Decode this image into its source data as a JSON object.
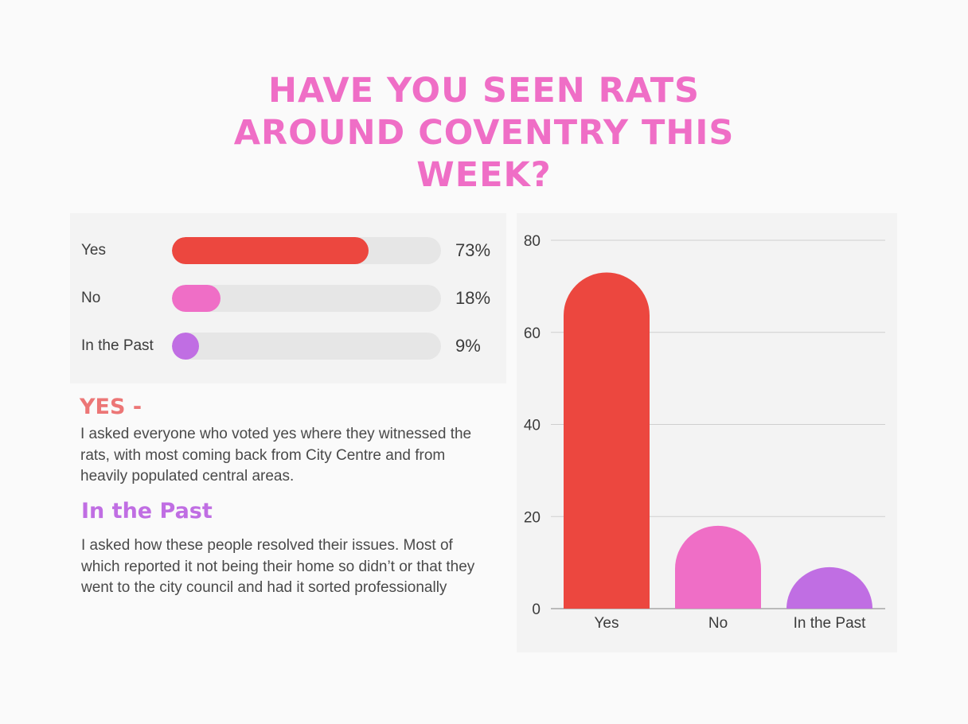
{
  "title": "HAVE YOU SEEN RATS AROUND COVENTRY THIS WEEK?",
  "poll": [
    {
      "label": "Yes",
      "percent_label": "73%",
      "value": 73,
      "color": "#ec473f"
    },
    {
      "label": "No",
      "percent_label": "18%",
      "value": 18,
      "color": "#ef6ec6"
    },
    {
      "label": "In the Past",
      "percent_label": "9%",
      "value": 9,
      "color": "#c06ee3"
    }
  ],
  "sections": {
    "yes": {
      "heading": "YES -",
      "heading_color": "#ec7676",
      "text": "I asked everyone who voted yes where they witnessed the rats, with most coming back from City Centre and from heavily populated central areas."
    },
    "past": {
      "heading": "In the Past",
      "heading_color": "#c06ee3",
      "text": "I asked how these people resolved their issues. Most of which reported it not being their home so didn’t or that they went to the city council and had it sorted professionally"
    }
  },
  "chart_data": {
    "type": "bar",
    "categories": [
      "Yes",
      "No",
      "In the Past"
    ],
    "values": [
      73,
      18,
      9
    ],
    "colors": [
      "#ec473f",
      "#ef6ec6",
      "#c06ee3"
    ],
    "ylim": [
      0,
      80
    ],
    "yticks": [
      0,
      20,
      40,
      60,
      80
    ],
    "grid": true,
    "title": "",
    "xlabel": "",
    "ylabel": ""
  }
}
